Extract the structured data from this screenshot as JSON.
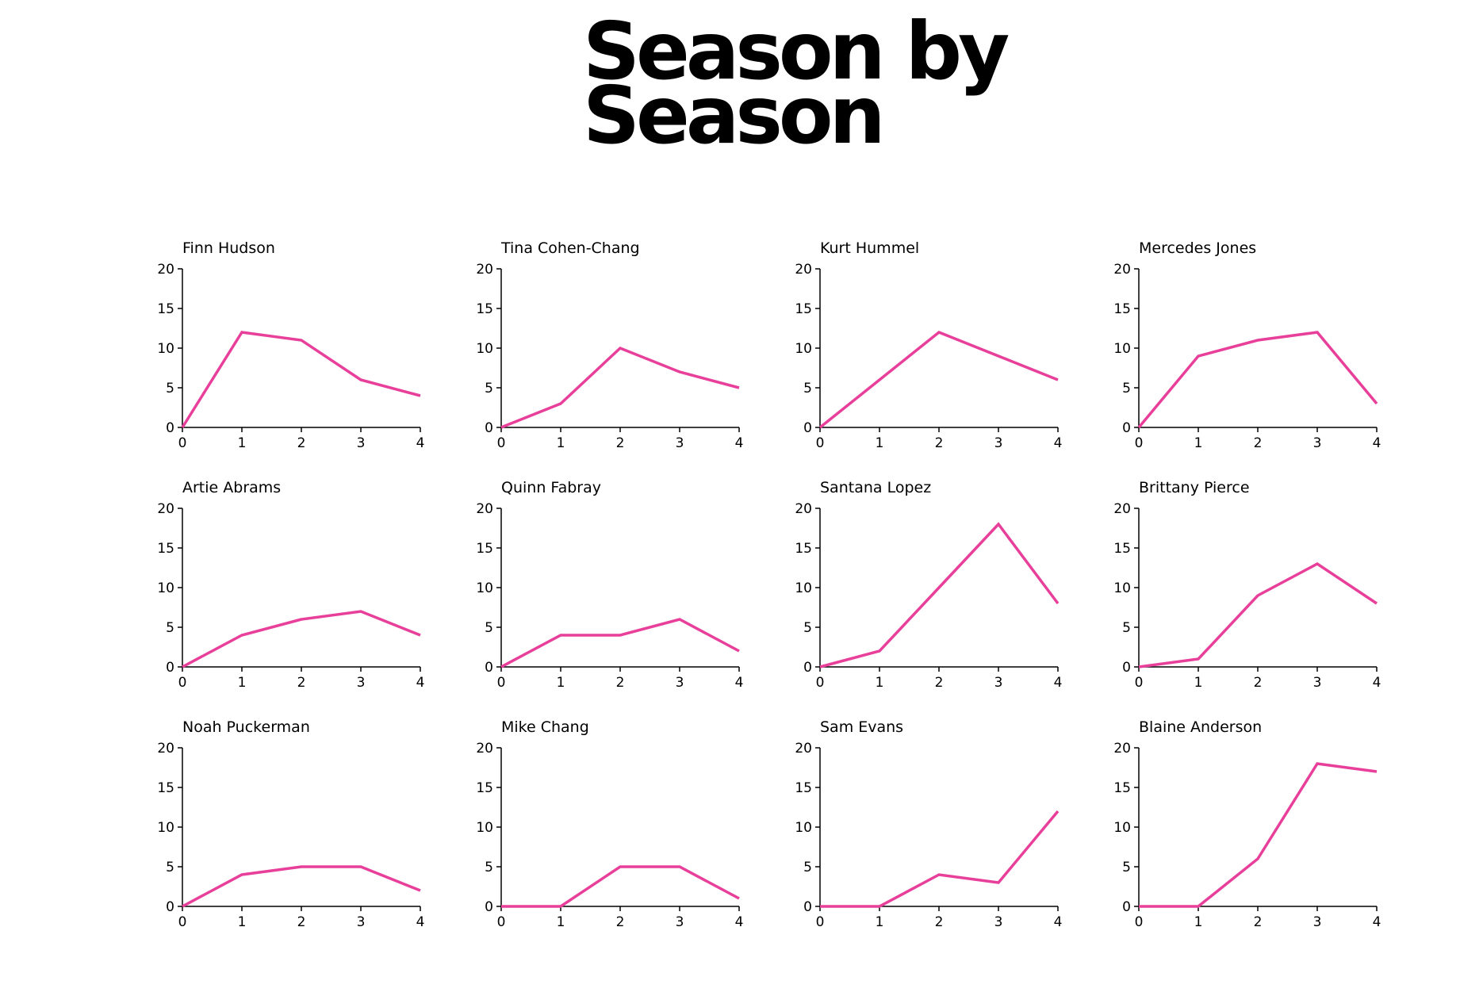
{
  "page": {
    "title": "Season by Season"
  },
  "chart_data": {
    "type": "line",
    "layout": "small-multiples",
    "grid": false,
    "line_color": "#e8409a",
    "x": [
      0,
      1,
      2,
      3,
      4
    ],
    "xlim": [
      0,
      4
    ],
    "ylim": [
      0,
      20
    ],
    "xticks": [
      0,
      1,
      2,
      3,
      4
    ],
    "yticks": [
      0,
      5,
      10,
      15,
      20
    ],
    "panels": [
      {
        "name": "Finn Hudson",
        "values": [
          0,
          12,
          11,
          6,
          4
        ]
      },
      {
        "name": "Tina Cohen-Chang",
        "values": [
          0,
          3,
          10,
          7,
          5
        ]
      },
      {
        "name": "Kurt Hummel",
        "values": [
          0,
          6,
          12,
          9,
          6
        ]
      },
      {
        "name": "Mercedes Jones",
        "values": [
          0,
          9,
          11,
          12,
          3
        ]
      },
      {
        "name": "Artie Abrams",
        "values": [
          0,
          4,
          6,
          7,
          4
        ]
      },
      {
        "name": "Quinn Fabray",
        "values": [
          0,
          4,
          4,
          6,
          2
        ]
      },
      {
        "name": "Santana Lopez",
        "values": [
          0,
          2,
          10,
          18,
          8
        ]
      },
      {
        "name": "Brittany Pierce",
        "values": [
          0,
          1,
          9,
          13,
          8
        ]
      },
      {
        "name": "Noah Puckerman",
        "values": [
          0,
          4,
          5,
          5,
          2
        ]
      },
      {
        "name": "Mike Chang",
        "values": [
          0,
          0,
          5,
          5,
          1
        ]
      },
      {
        "name": "Sam Evans",
        "values": [
          0,
          0,
          4,
          3,
          12
        ]
      },
      {
        "name": "Blaine Anderson",
        "values": [
          0,
          0,
          6,
          18,
          17
        ]
      }
    ]
  }
}
